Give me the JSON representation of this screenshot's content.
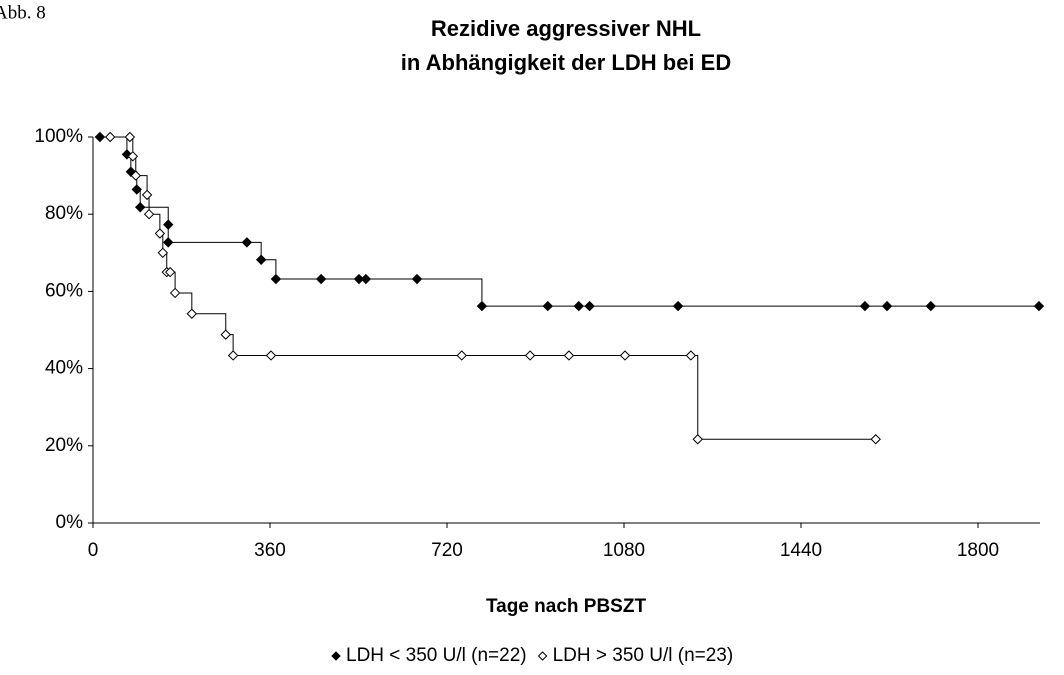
{
  "chart_data": {
    "type": "step",
    "annotation": "Abb. 8",
    "title": [
      "Rezidive aggressiver NHL",
      "in Abhängigkeit der LDH bei ED"
    ],
    "x_label": "Tage nach PBSZT",
    "xlim": [
      0,
      1920
    ],
    "xticks": [
      0,
      360,
      720,
      1080,
      1440,
      1800
    ],
    "ylim": [
      0,
      100
    ],
    "yticks": [
      {
        "value": 0,
        "label": "0%"
      },
      {
        "value": 20,
        "label": "20%"
      },
      {
        "value": 40,
        "label": "40%"
      },
      {
        "value": 60,
        "label": "60%"
      },
      {
        "value": 80,
        "label": "80%"
      },
      {
        "value": 100,
        "label": "100%"
      }
    ],
    "series": [
      {
        "name": "LDH < 350 U/l (n=22)",
        "color": "#000000",
        "marker": "filled",
        "x": [
          14,
          69,
          77,
          89,
          96,
          153,
          153,
          313,
          342,
          372,
          464,
          541,
          555,
          659,
          791,
          925,
          988,
          1010,
          1190,
          1570,
          1615,
          1704,
          1924
        ],
        "values": [
          100,
          95.5,
          91,
          86.4,
          81.8,
          77.3,
          72.7,
          72.7,
          68.2,
          63.2,
          63.2,
          63.2,
          63.2,
          63.2,
          56.2,
          56.2,
          56.2,
          56.2,
          56.2,
          56.2,
          56.2,
          56.2,
          56.2
        ]
      },
      {
        "name": "LDH > 350 U/l (n=23)",
        "color": "#000000",
        "marker": "open",
        "x": [
          35,
          75,
          81,
          87,
          110,
          114,
          136,
          142,
          150,
          157,
          167,
          201,
          270,
          285,
          362,
          750,
          889,
          968,
          1082,
          1216,
          1230,
          1592
        ],
        "values": [
          100,
          100,
          95,
          90,
          85,
          80,
          75,
          70,
          65,
          65,
          59.6,
          54.2,
          48.8,
          43.4,
          43.4,
          43.4,
          43.4,
          43.4,
          43.4,
          43.4,
          21.7,
          21.7
        ]
      }
    ]
  }
}
